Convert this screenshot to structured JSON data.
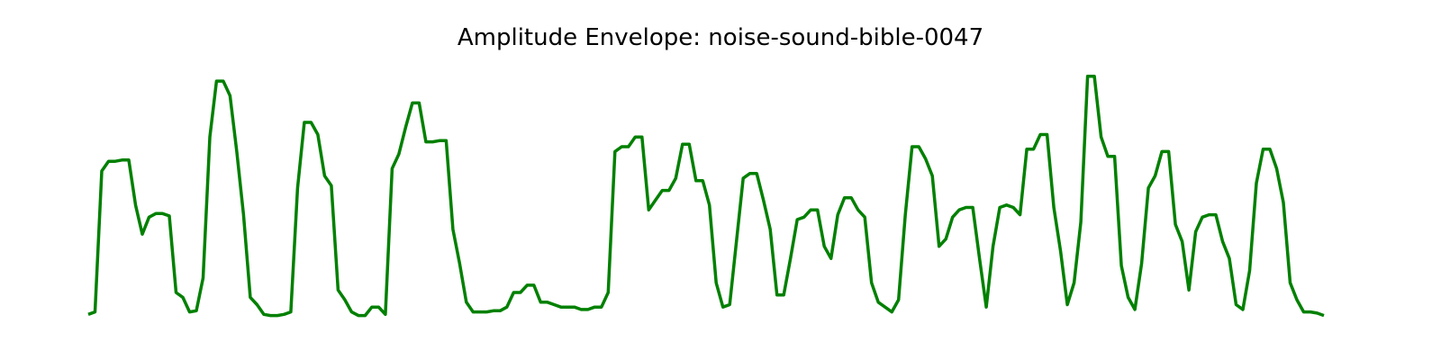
{
  "chart_data": {
    "type": "line",
    "title": "Amplitude Envelope: noise-sound-bible-0047",
    "xlabel": "",
    "ylabel": "",
    "axes_visible": false,
    "grid": false,
    "legend": "none",
    "ylim": [
      0,
      1
    ],
    "line_color": "#008000",
    "series": [
      {
        "values": [
          0.01,
          0.02,
          0.6,
          0.64,
          0.64,
          0.645,
          0.645,
          0.46,
          0.34,
          0.41,
          0.425,
          0.425,
          0.415,
          0.1,
          0.08,
          0.02,
          0.025,
          0.16,
          0.74,
          0.97,
          0.97,
          0.91,
          0.68,
          0.42,
          0.08,
          0.05,
          0.01,
          0.005,
          0.005,
          0.01,
          0.02,
          0.53,
          0.8,
          0.8,
          0.75,
          0.58,
          0.54,
          0.11,
          0.07,
          0.02,
          0.005,
          0.005,
          0.04,
          0.04,
          0.01,
          0.61,
          0.67,
          0.78,
          0.88,
          0.88,
          0.72,
          0.72,
          0.725,
          0.725,
          0.36,
          0.22,
          0.06,
          0.02,
          0.02,
          0.02,
          0.025,
          0.025,
          0.04,
          0.1,
          0.1,
          0.13,
          0.13,
          0.06,
          0.06,
          0.05,
          0.04,
          0.04,
          0.04,
          0.03,
          0.03,
          0.04,
          0.04,
          0.1,
          0.68,
          0.7,
          0.7,
          0.74,
          0.74,
          0.44,
          0.48,
          0.52,
          0.52,
          0.57,
          0.71,
          0.71,
          0.56,
          0.56,
          0.46,
          0.14,
          0.04,
          0.05,
          0.31,
          0.57,
          0.59,
          0.59,
          0.48,
          0.36,
          0.09,
          0.09,
          0.24,
          0.4,
          0.41,
          0.44,
          0.44,
          0.29,
          0.24,
          0.42,
          0.49,
          0.49,
          0.44,
          0.41,
          0.14,
          0.06,
          0.04,
          0.02,
          0.07,
          0.42,
          0.7,
          0.7,
          0.65,
          0.58,
          0.29,
          0.32,
          0.41,
          0.44,
          0.45,
          0.45,
          0.24,
          0.04,
          0.29,
          0.45,
          0.46,
          0.45,
          0.42,
          0.69,
          0.69,
          0.75,
          0.75,
          0.45,
          0.27,
          0.05,
          0.14,
          0.39,
          0.99,
          0.99,
          0.74,
          0.66,
          0.66,
          0.21,
          0.08,
          0.03,
          0.22,
          0.53,
          0.58,
          0.68,
          0.68,
          0.38,
          0.31,
          0.11,
          0.35,
          0.41,
          0.42,
          0.42,
          0.31,
          0.24,
          0.05,
          0.03,
          0.19,
          0.55,
          0.69,
          0.69,
          0.61,
          0.47,
          0.14,
          0.07,
          0.02,
          0.02,
          0.015,
          0.005
        ]
      }
    ]
  }
}
